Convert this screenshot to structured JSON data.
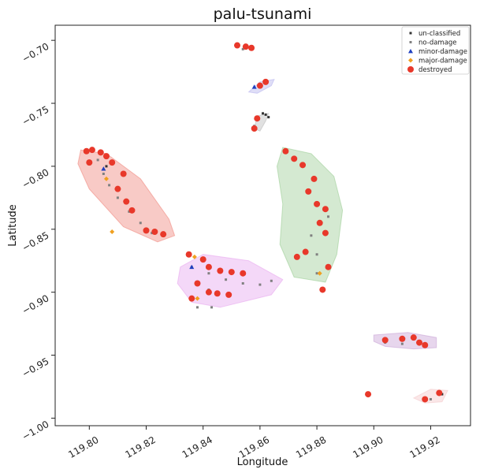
{
  "chart_data": {
    "type": "scatter",
    "title": "palu-tsunami",
    "xlabel": "Longitude",
    "ylabel": "Latitude",
    "xlim": [
      119.788,
      119.934
    ],
    "ylim": [
      -1.006,
      -0.688
    ],
    "xticks": [
      119.8,
      119.82,
      119.84,
      119.86,
      119.88,
      119.9,
      119.92
    ],
    "yticks": [
      -0.7,
      -0.75,
      -0.8,
      -0.85,
      -0.9,
      -0.95,
      -1.0
    ],
    "xtick_labels": [
      "119.80",
      "119.82",
      "119.84",
      "119.86",
      "119.88",
      "119.90",
      "119.92"
    ],
    "ytick_labels": [
      "−0.70",
      "−0.75",
      "−0.80",
      "−0.85",
      "−0.90",
      "−0.95",
      "−1.00"
    ],
    "grid": false,
    "legend_position": "top-right",
    "series": [
      {
        "name": "un-classified",
        "color": "#333333",
        "marker": "dot",
        "points": [
          [
            119.862,
            -0.759
          ],
          [
            119.863,
            -0.761
          ],
          [
            119.861,
            -0.758
          ],
          [
            119.924,
            -0.981
          ],
          [
            119.806,
            -0.8
          ]
        ]
      },
      {
        "name": "no-damage",
        "color": "#808080",
        "marker": "dot",
        "points": [
          [
            119.803,
            -0.795
          ],
          [
            119.805,
            -0.806
          ],
          [
            119.807,
            -0.815
          ],
          [
            119.81,
            -0.825
          ],
          [
            119.814,
            -0.836
          ],
          [
            119.818,
            -0.845
          ],
          [
            119.822,
            -0.853
          ],
          [
            119.836,
            -0.88
          ],
          [
            119.842,
            -0.885
          ],
          [
            119.848,
            -0.89
          ],
          [
            119.854,
            -0.893
          ],
          [
            119.86,
            -0.894
          ],
          [
            119.864,
            -0.891
          ],
          [
            119.842,
            -0.898
          ],
          [
            119.838,
            -0.912
          ],
          [
            119.843,
            -0.912
          ],
          [
            119.854,
            -0.707
          ],
          [
            119.86,
            -0.736
          ],
          [
            119.858,
            -0.768
          ],
          [
            119.878,
            -0.855
          ],
          [
            119.88,
            -0.87
          ],
          [
            119.88,
            -0.885
          ],
          [
            119.884,
            -0.84
          ],
          [
            119.904,
            -0.94
          ],
          [
            119.91,
            -0.941
          ],
          [
            119.918,
            -0.942
          ],
          [
            119.92,
            -0.985
          ]
        ]
      },
      {
        "name": "minor-damage",
        "color": "#1f3fbf",
        "marker": "triangle",
        "points": [
          [
            119.858,
            -0.737
          ],
          [
            119.805,
            -0.802
          ],
          [
            119.836,
            -0.88
          ]
        ]
      },
      {
        "name": "major-damage",
        "color": "#f0a020",
        "marker": "diamond",
        "points": [
          [
            119.806,
            -0.81
          ],
          [
            119.808,
            -0.852
          ],
          [
            119.881,
            -0.885
          ],
          [
            119.837,
            -0.872
          ],
          [
            119.838,
            -0.905
          ]
        ]
      },
      {
        "name": "destroyed",
        "color": "#e8382a",
        "marker": "circle",
        "points": [
          [
            119.799,
            -0.788
          ],
          [
            119.801,
            -0.787
          ],
          [
            119.804,
            -0.789
          ],
          [
            119.806,
            -0.792
          ],
          [
            119.808,
            -0.797
          ],
          [
            119.812,
            -0.806
          ],
          [
            119.81,
            -0.818
          ],
          [
            119.813,
            -0.828
          ],
          [
            119.815,
            -0.835
          ],
          [
            119.82,
            -0.851
          ],
          [
            119.823,
            -0.852
          ],
          [
            119.826,
            -0.854
          ],
          [
            119.8,
            -0.797
          ],
          [
            119.835,
            -0.87
          ],
          [
            119.84,
            -0.874
          ],
          [
            119.842,
            -0.88
          ],
          [
            119.846,
            -0.883
          ],
          [
            119.85,
            -0.884
          ],
          [
            119.854,
            -0.885
          ],
          [
            119.842,
            -0.9
          ],
          [
            119.845,
            -0.901
          ],
          [
            119.849,
            -0.902
          ],
          [
            119.838,
            -0.893
          ],
          [
            119.836,
            -0.905
          ],
          [
            119.852,
            -0.704
          ],
          [
            119.855,
            -0.705
          ],
          [
            119.857,
            -0.706
          ],
          [
            119.86,
            -0.736
          ],
          [
            119.862,
            -0.733
          ],
          [
            119.859,
            -0.762
          ],
          [
            119.858,
            -0.77
          ],
          [
            119.869,
            -0.788
          ],
          [
            119.872,
            -0.794
          ],
          [
            119.875,
            -0.799
          ],
          [
            119.879,
            -0.81
          ],
          [
            119.877,
            -0.82
          ],
          [
            119.88,
            -0.83
          ],
          [
            119.883,
            -0.834
          ],
          [
            119.881,
            -0.845
          ],
          [
            119.883,
            -0.853
          ],
          [
            119.876,
            -0.868
          ],
          [
            119.873,
            -0.872
          ],
          [
            119.884,
            -0.88
          ],
          [
            119.882,
            -0.898
          ],
          [
            119.904,
            -0.938
          ],
          [
            119.91,
            -0.937
          ],
          [
            119.914,
            -0.936
          ],
          [
            119.916,
            -0.94
          ],
          [
            119.918,
            -0.942
          ],
          [
            119.898,
            -0.981
          ],
          [
            119.918,
            -0.985
          ],
          [
            119.923,
            -0.98
          ]
        ]
      }
    ],
    "regions": [
      {
        "color": "#f08a80",
        "points": [
          [
            119.797,
            -0.787
          ],
          [
            119.806,
            -0.79
          ],
          [
            119.818,
            -0.81
          ],
          [
            119.828,
            -0.842
          ],
          [
            119.83,
            -0.855
          ],
          [
            119.824,
            -0.86
          ],
          [
            119.812,
            -0.848
          ],
          [
            119.8,
            -0.818
          ],
          [
            119.796,
            -0.798
          ]
        ]
      },
      {
        "color": "#e7a8ef",
        "points": [
          [
            119.832,
            -0.88
          ],
          [
            119.84,
            -0.87
          ],
          [
            119.856,
            -0.875
          ],
          [
            119.868,
            -0.89
          ],
          [
            119.864,
            -0.902
          ],
          [
            119.846,
            -0.912
          ],
          [
            119.836,
            -0.908
          ],
          [
            119.831,
            -0.893
          ]
        ]
      },
      {
        "color": "#9fcf98",
        "points": [
          [
            119.868,
            -0.785
          ],
          [
            119.878,
            -0.79
          ],
          [
            119.886,
            -0.808
          ],
          [
            119.889,
            -0.835
          ],
          [
            119.887,
            -0.87
          ],
          [
            119.883,
            -0.892
          ],
          [
            119.872,
            -0.888
          ],
          [
            119.867,
            -0.862
          ],
          [
            119.868,
            -0.83
          ],
          [
            119.866,
            -0.8
          ]
        ]
      },
      {
        "color": "#b9b6ee",
        "points": [
          [
            119.856,
            -0.741
          ],
          [
            119.86,
            -0.733
          ],
          [
            119.865,
            -0.731
          ],
          [
            119.864,
            -0.736
          ],
          [
            119.859,
            -0.742
          ]
        ]
      },
      {
        "color": "#bdbdbd",
        "points": [
          [
            119.858,
            -0.77
          ],
          [
            119.859,
            -0.76
          ],
          [
            119.863,
            -0.758
          ],
          [
            119.862,
            -0.764
          ],
          [
            119.86,
            -0.772
          ]
        ]
      },
      {
        "color": "#c9a5d6",
        "points": [
          [
            119.9,
            -0.934
          ],
          [
            119.912,
            -0.932
          ],
          [
            119.922,
            -0.936
          ],
          [
            119.922,
            -0.944
          ],
          [
            119.914,
            -0.945
          ],
          [
            119.904,
            -0.943
          ],
          [
            119.9,
            -0.939
          ]
        ]
      },
      {
        "color": "#f3c9cc",
        "points": [
          [
            119.914,
            -0.984
          ],
          [
            119.92,
            -0.977
          ],
          [
            119.926,
            -0.978
          ],
          [
            119.924,
            -0.987
          ],
          [
            119.918,
            -0.988
          ]
        ]
      }
    ]
  }
}
